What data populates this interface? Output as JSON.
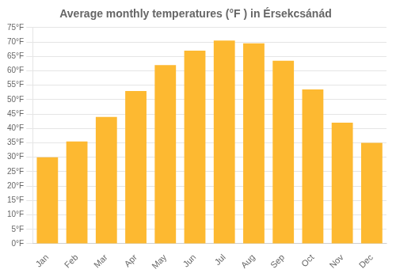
{
  "chart_data": {
    "type": "bar",
    "title": "Average monthly temperatures (°F ) in Érsekcsánád",
    "categories": [
      "Jan",
      "Feb",
      "Mar",
      "Apr",
      "May",
      "Jun",
      "Jul",
      "Aug",
      "Sep",
      "Oct",
      "Nov",
      "Dec"
    ],
    "values": [
      30,
      35.5,
      44,
      53,
      62,
      67,
      70.5,
      69.5,
      63.5,
      53.5,
      42,
      35
    ],
    "color": "#FDB931",
    "ylim": [
      0,
      75
    ],
    "yticks": [
      {
        "value": 0,
        "label": "0°F"
      },
      {
        "value": 5,
        "label": "5°F"
      },
      {
        "value": 10,
        "label": "10°F"
      },
      {
        "value": 15,
        "label": "15°F"
      },
      {
        "value": 20,
        "label": "20°F"
      },
      {
        "value": 25,
        "label": "25°F"
      },
      {
        "value": 30,
        "label": "30°F"
      },
      {
        "value": 35,
        "label": "35°F"
      },
      {
        "value": 40,
        "label": "40°F"
      },
      {
        "value": 45,
        "label": "45°F"
      },
      {
        "value": 50,
        "label": "50°F"
      },
      {
        "value": 55,
        "label": "55°F"
      },
      {
        "value": 60,
        "label": "60°F"
      },
      {
        "value": 65,
        "label": "65°F"
      },
      {
        "value": 70,
        "label": "70°F"
      },
      {
        "value": 75,
        "label": "75°F"
      }
    ],
    "grid": true
  }
}
